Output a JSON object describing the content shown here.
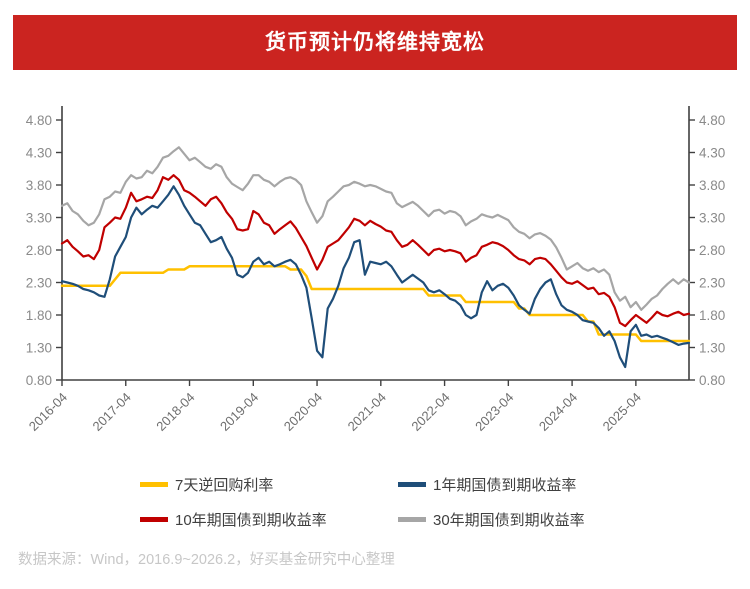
{
  "header": {
    "title": "货币预计仍将维持宽松",
    "bg_color": "#CB2420",
    "text_color": "#FFFFFF"
  },
  "chart_data": {
    "type": "line",
    "title": "货币预计仍将维持宽松",
    "xlabel": "",
    "ylabel": "",
    "ylim": [
      0.8,
      4.8
    ],
    "y_tick_step": 0.5,
    "y_tick_labels": [
      "0.80",
      "1.30",
      "1.80",
      "2.30",
      "2.80",
      "3.30",
      "3.80",
      "4.30",
      "4.80"
    ],
    "grid": false,
    "legend_position": "bottom",
    "x_start": "2016-04",
    "x_end": "2026-02",
    "x_interval": "monthly",
    "x_tick_labels": [
      "2016-04",
      "2017-04",
      "2018-04",
      "2019-04",
      "2020-04",
      "2021-04",
      "2022-04",
      "2023-04",
      "2024-04",
      "2025-04"
    ],
    "x_tick_month_indices": [
      0,
      12,
      24,
      36,
      48,
      60,
      72,
      84,
      96,
      108
    ],
    "axis_color": "#404040",
    "y_tick_label_color": "#8a8a8a",
    "x_tick_label_color": "#6e6e6e",
    "series": [
      {
        "name": "7天逆回购利率",
        "color": "#FFC000",
        "values": [
          2.25,
          2.25,
          2.25,
          2.25,
          2.25,
          2.25,
          2.25,
          2.25,
          2.25,
          2.25,
          2.35,
          2.45,
          2.45,
          2.45,
          2.45,
          2.45,
          2.45,
          2.45,
          2.45,
          2.45,
          2.5,
          2.5,
          2.5,
          2.5,
          2.55,
          2.55,
          2.55,
          2.55,
          2.55,
          2.55,
          2.55,
          2.55,
          2.55,
          2.55,
          2.55,
          2.55,
          2.55,
          2.55,
          2.55,
          2.55,
          2.55,
          2.55,
          2.55,
          2.5,
          2.5,
          2.5,
          2.4,
          2.2,
          2.2,
          2.2,
          2.2,
          2.2,
          2.2,
          2.2,
          2.2,
          2.2,
          2.2,
          2.2,
          2.2,
          2.2,
          2.2,
          2.2,
          2.2,
          2.2,
          2.2,
          2.2,
          2.2,
          2.2,
          2.2,
          2.1,
          2.1,
          2.1,
          2.1,
          2.1,
          2.1,
          2.1,
          2.0,
          2.0,
          2.0,
          2.0,
          2.0,
          2.0,
          2.0,
          2.0,
          2.0,
          2.0,
          1.9,
          1.9,
          1.8,
          1.8,
          1.8,
          1.8,
          1.8,
          1.8,
          1.8,
          1.8,
          1.8,
          1.8,
          1.8,
          1.7,
          1.7,
          1.5,
          1.5,
          1.5,
          1.5,
          1.5,
          1.5,
          1.5,
          1.5,
          1.4,
          1.4,
          1.4,
          1.4,
          1.4,
          1.4,
          1.4,
          1.4,
          1.4,
          1.4
        ]
      },
      {
        "name": "1年期国债到期收益率",
        "color": "#1F4E79",
        "values": [
          2.32,
          2.3,
          2.28,
          2.25,
          2.2,
          2.18,
          2.15,
          2.1,
          2.08,
          2.35,
          2.7,
          2.85,
          3.0,
          3.3,
          3.45,
          3.35,
          3.42,
          3.48,
          3.45,
          3.55,
          3.65,
          3.78,
          3.65,
          3.48,
          3.35,
          3.22,
          3.18,
          3.05,
          2.92,
          2.95,
          3.0,
          2.82,
          2.68,
          2.42,
          2.38,
          2.45,
          2.62,
          2.68,
          2.58,
          2.62,
          2.55,
          2.58,
          2.62,
          2.65,
          2.58,
          2.42,
          2.22,
          1.75,
          1.25,
          1.15,
          1.9,
          2.05,
          2.25,
          2.52,
          2.68,
          2.92,
          2.95,
          2.42,
          2.62,
          2.6,
          2.58,
          2.62,
          2.55,
          2.42,
          2.3,
          2.36,
          2.42,
          2.36,
          2.3,
          2.18,
          2.15,
          2.18,
          2.12,
          2.05,
          2.02,
          1.95,
          1.8,
          1.75,
          1.8,
          2.15,
          2.32,
          2.18,
          2.25,
          2.28,
          2.22,
          2.1,
          1.95,
          1.88,
          1.82,
          2.05,
          2.2,
          2.3,
          2.35,
          2.12,
          1.95,
          1.88,
          1.85,
          1.8,
          1.72,
          1.7,
          1.68,
          1.6,
          1.48,
          1.55,
          1.4,
          1.15,
          1.0,
          1.55,
          1.65,
          1.48,
          1.5,
          1.46,
          1.48,
          1.45,
          1.42,
          1.38,
          1.34,
          1.36,
          1.37
        ]
      },
      {
        "name": "10年期国债到期收益率",
        "color": "#C00000",
        "values": [
          2.9,
          2.95,
          2.85,
          2.78,
          2.7,
          2.72,
          2.66,
          2.8,
          3.15,
          3.22,
          3.3,
          3.28,
          3.45,
          3.68,
          3.55,
          3.58,
          3.62,
          3.6,
          3.72,
          3.92,
          3.88,
          3.95,
          3.88,
          3.72,
          3.68,
          3.62,
          3.55,
          3.48,
          3.58,
          3.62,
          3.52,
          3.38,
          3.28,
          3.12,
          3.1,
          3.12,
          3.4,
          3.35,
          3.22,
          3.18,
          3.05,
          3.12,
          3.18,
          3.24,
          3.14,
          3.0,
          2.86,
          2.68,
          2.5,
          2.65,
          2.85,
          2.9,
          2.95,
          3.05,
          3.15,
          3.28,
          3.25,
          3.18,
          3.25,
          3.2,
          3.16,
          3.1,
          3.08,
          2.95,
          2.85,
          2.88,
          2.95,
          2.88,
          2.8,
          2.72,
          2.8,
          2.82,
          2.78,
          2.8,
          2.78,
          2.75,
          2.62,
          2.68,
          2.72,
          2.85,
          2.88,
          2.92,
          2.9,
          2.86,
          2.8,
          2.72,
          2.66,
          2.64,
          2.58,
          2.66,
          2.68,
          2.66,
          2.58,
          2.48,
          2.38,
          2.3,
          2.28,
          2.32,
          2.26,
          2.2,
          2.22,
          2.12,
          2.14,
          2.08,
          1.92,
          1.68,
          1.63,
          1.72,
          1.8,
          1.74,
          1.68,
          1.76,
          1.85,
          1.8,
          1.78,
          1.82,
          1.85,
          1.8,
          1.82
        ]
      },
      {
        "name": "30年期国债到期收益率",
        "color": "#A6A6A6",
        "values": [
          3.48,
          3.52,
          3.4,
          3.35,
          3.25,
          3.18,
          3.22,
          3.35,
          3.58,
          3.62,
          3.7,
          3.68,
          3.85,
          3.95,
          3.9,
          3.92,
          4.02,
          3.98,
          4.08,
          4.22,
          4.25,
          4.32,
          4.38,
          4.28,
          4.18,
          4.22,
          4.15,
          4.08,
          4.05,
          4.12,
          4.08,
          3.92,
          3.82,
          3.77,
          3.72,
          3.82,
          3.95,
          3.95,
          3.88,
          3.85,
          3.78,
          3.85,
          3.9,
          3.92,
          3.88,
          3.8,
          3.55,
          3.38,
          3.22,
          3.32,
          3.55,
          3.62,
          3.7,
          3.78,
          3.8,
          3.85,
          3.82,
          3.78,
          3.8,
          3.78,
          3.74,
          3.7,
          3.68,
          3.52,
          3.46,
          3.5,
          3.54,
          3.48,
          3.4,
          3.32,
          3.4,
          3.42,
          3.36,
          3.4,
          3.38,
          3.32,
          3.18,
          3.24,
          3.28,
          3.35,
          3.32,
          3.3,
          3.34,
          3.3,
          3.26,
          3.15,
          3.08,
          3.05,
          2.98,
          3.04,
          3.06,
          3.02,
          2.96,
          2.84,
          2.68,
          2.5,
          2.55,
          2.6,
          2.52,
          2.48,
          2.52,
          2.46,
          2.5,
          2.42,
          2.15,
          2.02,
          2.08,
          1.92,
          2.0,
          1.88,
          1.96,
          2.05,
          2.1,
          2.2,
          2.28,
          2.35,
          2.28,
          2.35,
          2.3
        ]
      }
    ]
  },
  "footer": {
    "source_text": "数据来源：Wind，2016.9~2026.2，好买基金研究中心整理"
  }
}
